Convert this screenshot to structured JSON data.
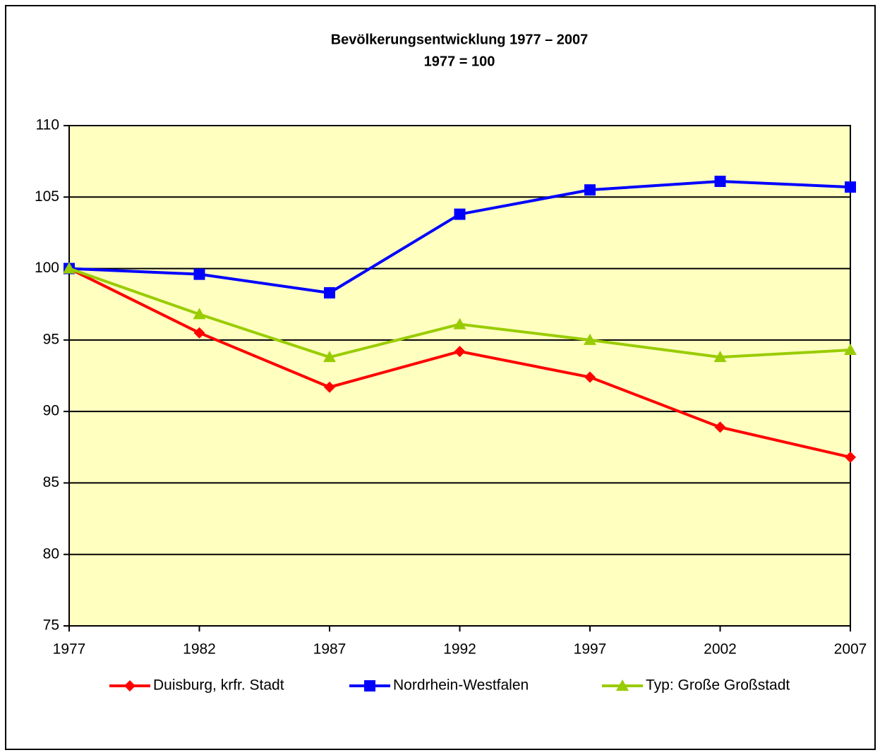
{
  "chart_data": {
    "type": "line",
    "title": "Bevölkerungsentwicklung 1977 – 2007",
    "subtitle": "1977 = 100",
    "x": [
      1977,
      1982,
      1987,
      1992,
      1997,
      2002,
      2007
    ],
    "xlim": [
      1977,
      2007
    ],
    "xticks": [
      1977,
      1982,
      1987,
      1992,
      1997,
      2002,
      2007
    ],
    "ylim": [
      75,
      110
    ],
    "yticks": [
      75,
      80,
      85,
      90,
      95,
      100,
      105,
      110
    ],
    "grid": true,
    "legend": "bottom",
    "plot_background": "#ffffc0",
    "series": [
      {
        "name": "Duisburg, krfr. Stadt",
        "color": "#ff0000",
        "marker": "diamond",
        "values": [
          100,
          95.5,
          91.7,
          94.2,
          92.4,
          88.9,
          86.8
        ]
      },
      {
        "name": "Nordrhein-Westfalen",
        "color": "#0000ff",
        "marker": "square",
        "values": [
          100,
          99.6,
          98.3,
          103.8,
          105.5,
          106.1,
          105.7
        ]
      },
      {
        "name": "Typ: Große Großstadt",
        "color": "#99cc00",
        "marker": "triangle",
        "values": [
          100,
          96.8,
          93.8,
          96.1,
          95.0,
          93.8,
          94.3
        ]
      }
    ]
  }
}
